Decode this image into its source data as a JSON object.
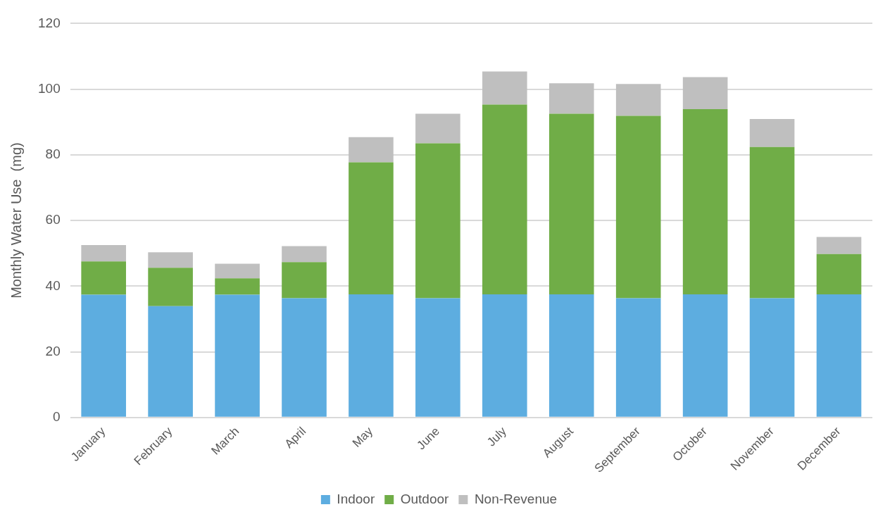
{
  "chart_data": {
    "type": "bar",
    "ylabel": "Monthly Water Use  (mg)",
    "categories": [
      "January",
      "February",
      "March",
      "April",
      "May",
      "June",
      "July",
      "August",
      "September",
      "October",
      "November",
      "December"
    ],
    "series": [
      {
        "name": "Indoor",
        "color": "#5dade0",
        "values": [
          37.4,
          33.9,
          37.4,
          36.3,
          37.5,
          36.3,
          37.5,
          37.5,
          36.3,
          37.5,
          36.3,
          37.5
        ]
      },
      {
        "name": "Outdoor",
        "color": "#70ad47",
        "values": [
          10.1,
          11.7,
          5.0,
          11.0,
          40.2,
          47.2,
          57.8,
          55.0,
          55.6,
          56.4,
          46.1,
          12.3
        ]
      },
      {
        "name": "Non-Revenue",
        "color": "#bfbfbf",
        "values": [
          5.0,
          4.7,
          4.4,
          4.9,
          7.7,
          9.0,
          10.1,
          9.3,
          9.7,
          9.8,
          8.5,
          5.2
        ]
      }
    ],
    "stacked": true,
    "ylim": [
      0,
      120
    ],
    "yticks": [
      0,
      20,
      40,
      60,
      80,
      100,
      120
    ],
    "grid": "y",
    "legend": "bottom"
  }
}
